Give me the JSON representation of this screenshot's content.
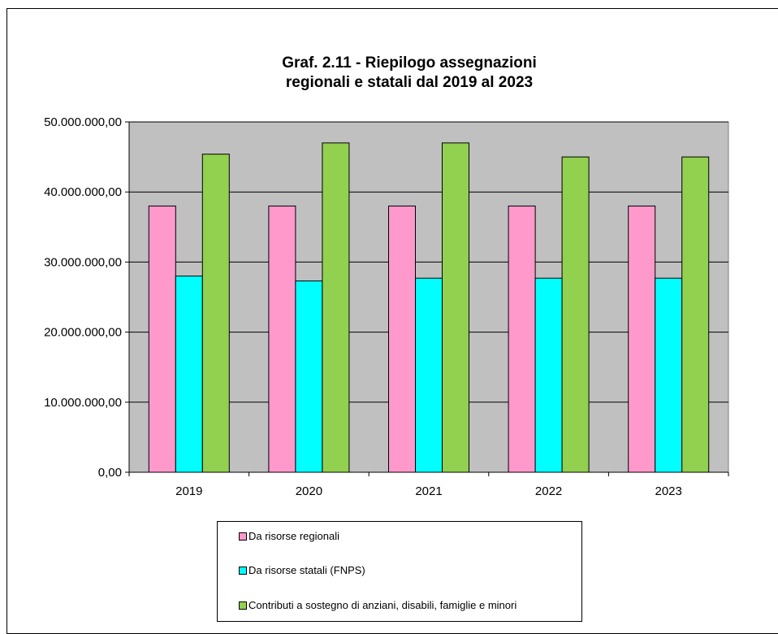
{
  "chart_data": {
    "type": "bar",
    "title": "Graf. 2.11 - Riepilogo assegnazioni\nregionali e statali dal 2019 al 2023",
    "categories": [
      "2019",
      "2020",
      "2021",
      "2022",
      "2023"
    ],
    "series": [
      {
        "name": "Da risorse  regionali",
        "color": "#ff99cc",
        "values": [
          38000000,
          38000000,
          38000000,
          38000000,
          38000000
        ]
      },
      {
        "name": "Da risorse statali (FNPS)",
        "color": "#00ffff",
        "values": [
          28000000,
          27300000,
          27700000,
          27700000,
          27700000
        ]
      },
      {
        "name": "Contributi a sostegno di anziani, disabili, famiglie e minori",
        "color": "#92d050",
        "values": [
          45400000,
          47000000,
          47000000,
          45000000,
          45000000
        ]
      }
    ],
    "ylim": [
      0,
      50000000
    ],
    "yticks": [
      "0,00",
      "10.000.000,00",
      "20.000.000,00",
      "30.000.000,00",
      "40.000.000,00",
      "50.000.000,00"
    ],
    "ytick_values": [
      0,
      10000000,
      20000000,
      30000000,
      40000000,
      50000000
    ],
    "grid": true,
    "plot_background": "#c0c0c0",
    "legend_position": "bottom"
  }
}
